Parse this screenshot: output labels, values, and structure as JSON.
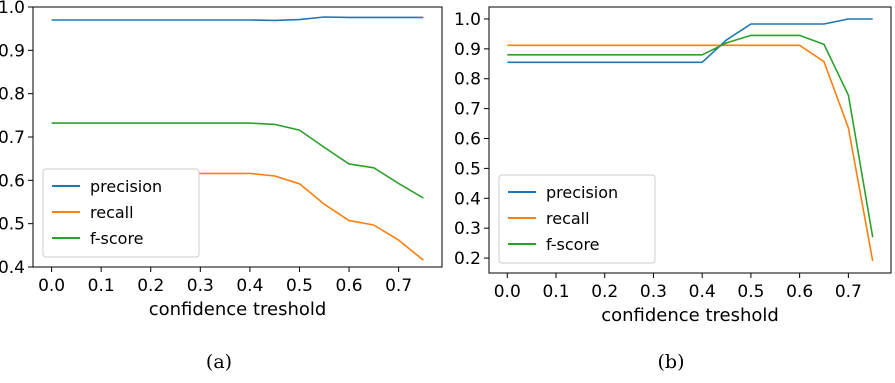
{
  "chart_data": [
    {
      "type": "line",
      "caption": "(a)",
      "xlabel": "confidence treshold",
      "ylabel": "",
      "xlim": [
        -0.0375,
        0.7875
      ],
      "ylim": [
        0.4,
        1.0
      ],
      "x_ticks": [
        "0.0",
        "0.1",
        "0.2",
        "0.3",
        "0.4",
        "0.5",
        "0.6",
        "0.7"
      ],
      "y_ticks": [
        "0.4",
        "0.5",
        "0.6",
        "0.7",
        "0.8",
        "0.9",
        "1.0"
      ],
      "legend_position": "lower-left",
      "x": [
        0.0,
        0.05,
        0.1,
        0.15,
        0.2,
        0.25,
        0.3,
        0.35,
        0.4,
        0.45,
        0.5,
        0.55,
        0.6,
        0.65,
        0.7,
        0.75
      ],
      "series": [
        {
          "name": "precision",
          "color": "#1f77b4",
          "values": [
            0.97,
            0.97,
            0.97,
            0.97,
            0.97,
            0.97,
            0.97,
            0.97,
            0.97,
            0.969,
            0.971,
            0.977,
            0.976,
            0.976,
            0.976,
            0.976
          ]
        },
        {
          "name": "recall",
          "color": "#ff7f0e",
          "values": [
            0.616,
            0.616,
            0.616,
            0.616,
            0.616,
            0.616,
            0.616,
            0.616,
            0.616,
            0.61,
            0.592,
            0.545,
            0.507,
            0.497,
            0.462,
            0.416
          ]
        },
        {
          "name": "f-score",
          "color": "#2ca02c",
          "values": [
            0.732,
            0.732,
            0.732,
            0.732,
            0.732,
            0.732,
            0.732,
            0.732,
            0.732,
            0.729,
            0.716,
            0.676,
            0.638,
            0.629,
            0.593,
            0.559
          ]
        }
      ]
    },
    {
      "type": "line",
      "caption": "(b)",
      "xlabel": "confidence treshold",
      "ylabel": "",
      "xlim": [
        -0.0375,
        0.7875
      ],
      "ylim": [
        0.15,
        1.04
      ],
      "x_ticks": [
        "0.0",
        "0.1",
        "0.2",
        "0.3",
        "0.4",
        "0.5",
        "0.6",
        "0.7"
      ],
      "y_ticks": [
        "0.2",
        "0.3",
        "0.4",
        "0.5",
        "0.6",
        "0.7",
        "0.8",
        "0.9",
        "1.0"
      ],
      "legend_position": "lower-left",
      "x": [
        0.0,
        0.05,
        0.1,
        0.15,
        0.2,
        0.25,
        0.3,
        0.35,
        0.4,
        0.45,
        0.5,
        0.55,
        0.6,
        0.65,
        0.7,
        0.75
      ],
      "series": [
        {
          "name": "precision",
          "color": "#1f77b4",
          "values": [
            0.855,
            0.855,
            0.855,
            0.855,
            0.855,
            0.855,
            0.855,
            0.855,
            0.855,
            0.93,
            0.983,
            0.983,
            0.983,
            0.983,
            1.0,
            1.0
          ]
        },
        {
          "name": "recall",
          "color": "#ff7f0e",
          "values": [
            0.912,
            0.912,
            0.912,
            0.912,
            0.912,
            0.912,
            0.912,
            0.912,
            0.912,
            0.912,
            0.912,
            0.912,
            0.912,
            0.857,
            0.635,
            0.19
          ]
        },
        {
          "name": "f-score",
          "color": "#2ca02c",
          "values": [
            0.88,
            0.88,
            0.88,
            0.88,
            0.88,
            0.88,
            0.88,
            0.88,
            0.88,
            0.92,
            0.945,
            0.945,
            0.945,
            0.915,
            0.745,
            0.27
          ]
        }
      ]
    }
  ]
}
